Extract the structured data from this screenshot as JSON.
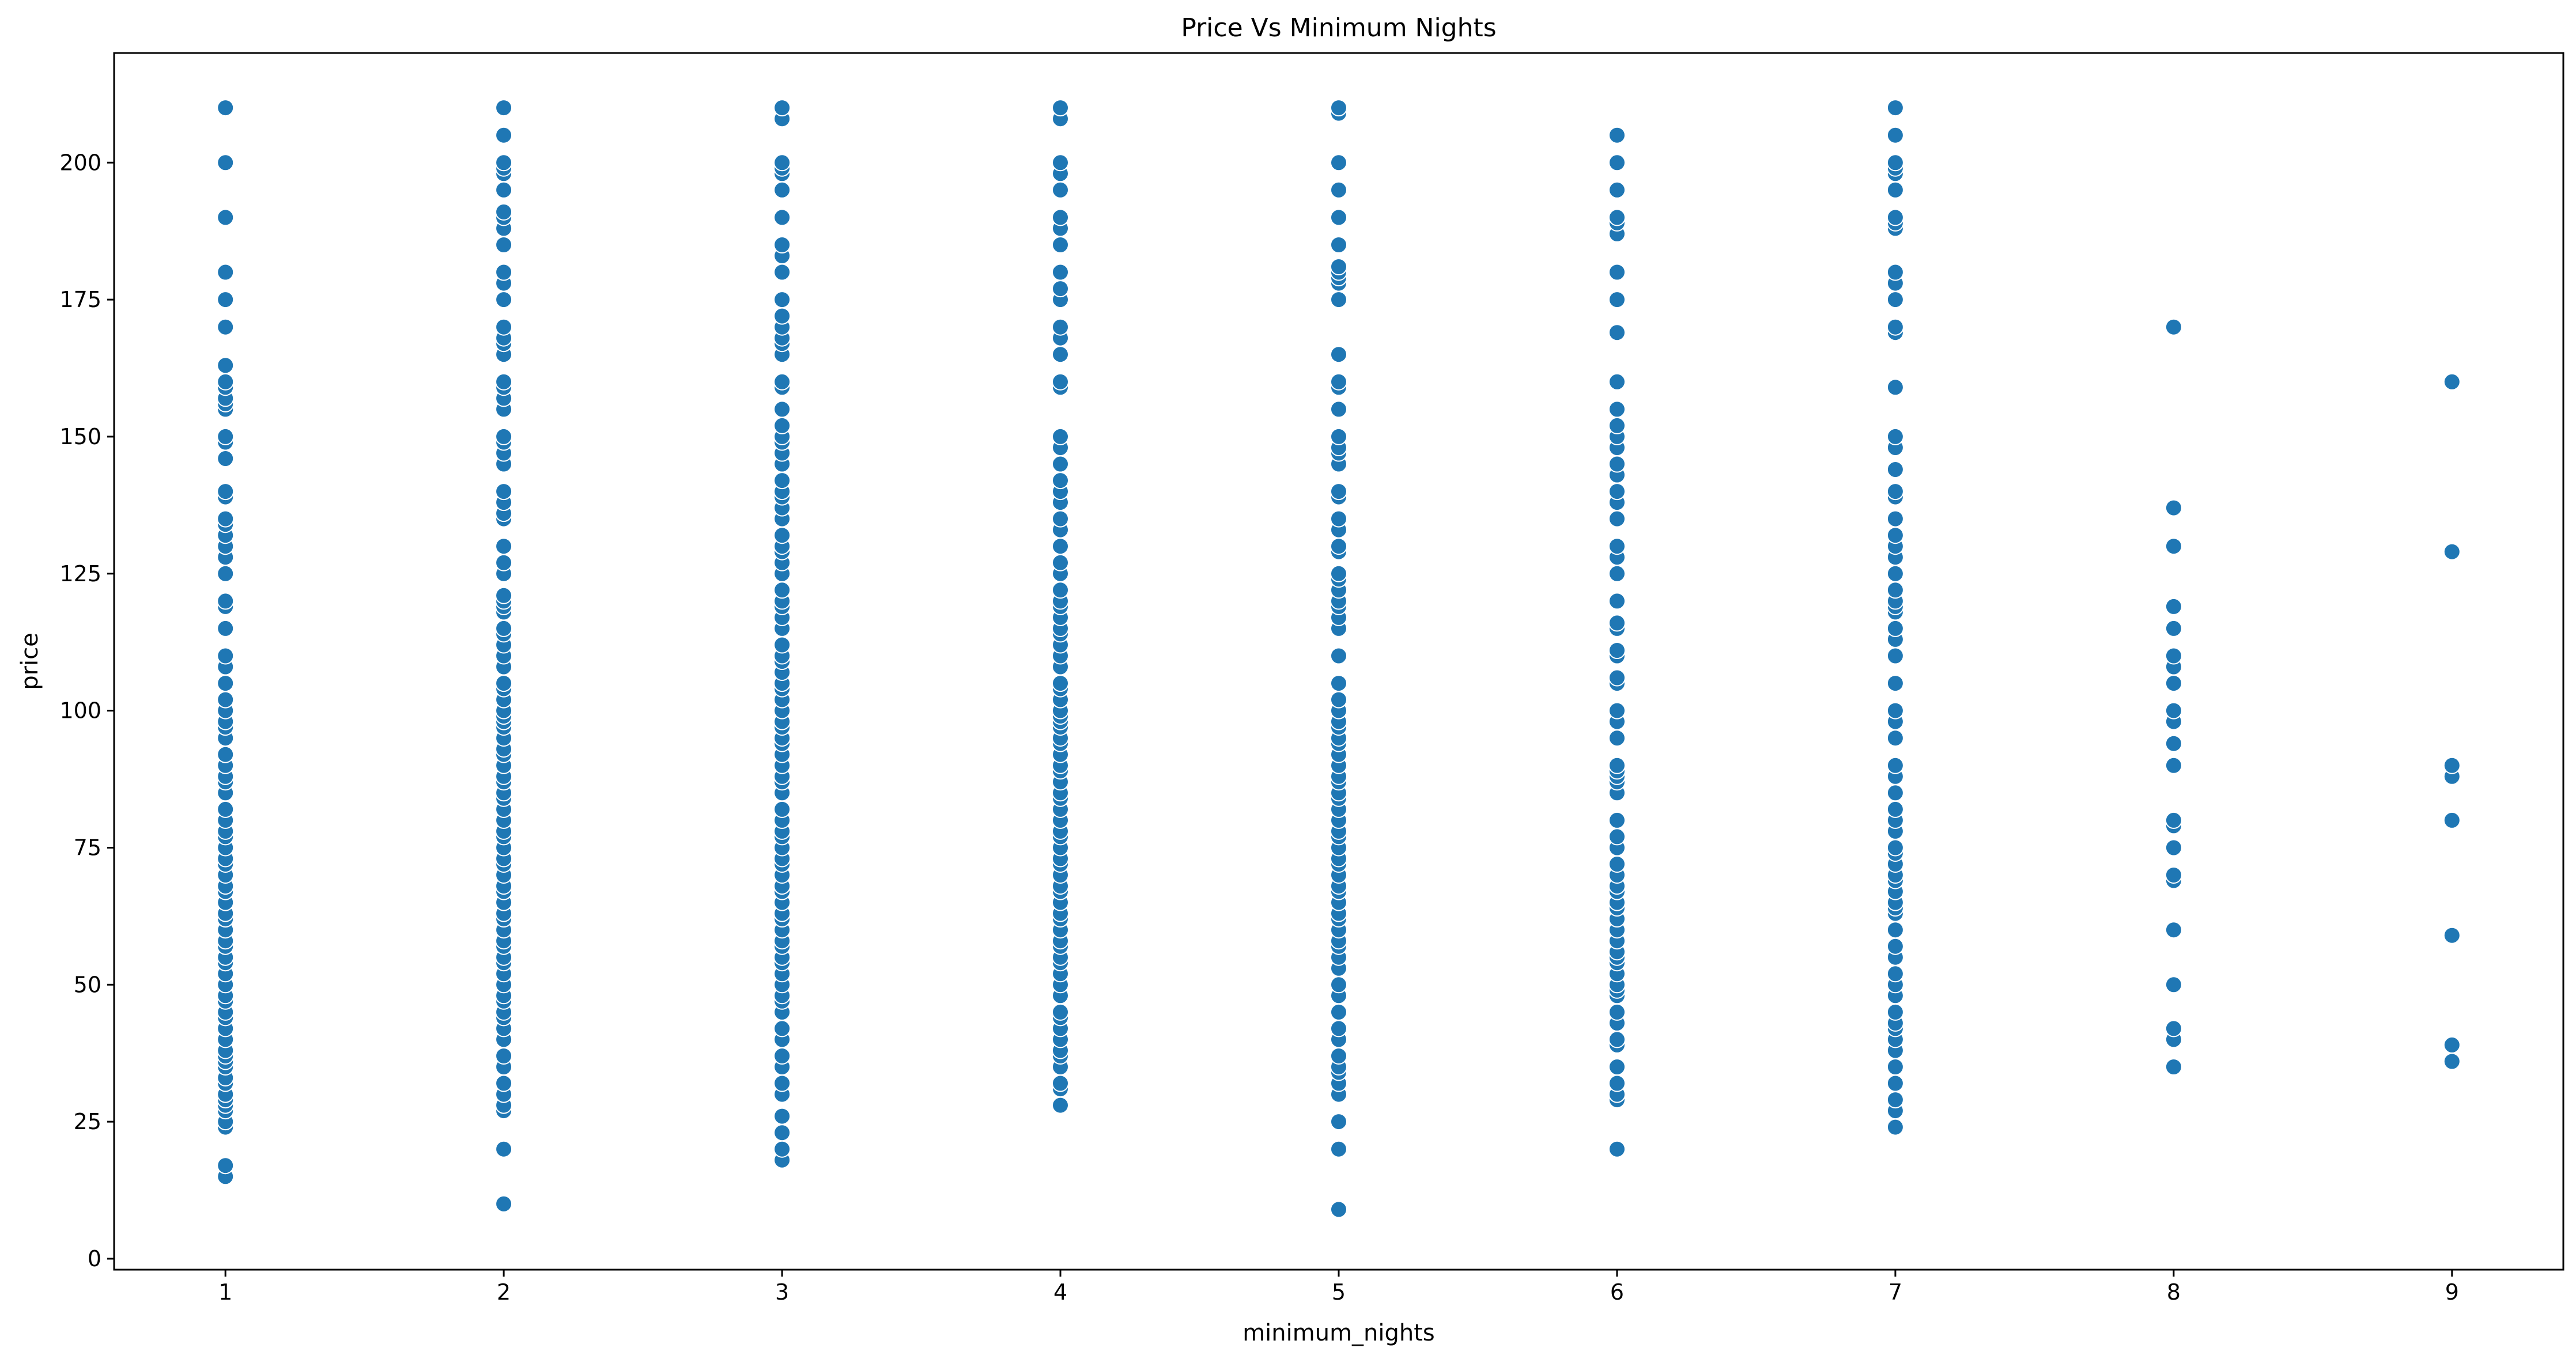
{
  "chart_data": {
    "type": "scatter",
    "title": "Price Vs Minimum Nights",
    "xlabel": "minimum_nights",
    "ylabel": "price",
    "xlim": [
      0.6,
      9.4
    ],
    "ylim": [
      -2,
      220
    ],
    "xticks": [
      1,
      2,
      3,
      4,
      5,
      6,
      7,
      8,
      9
    ],
    "yticks": [
      0,
      25,
      50,
      75,
      100,
      125,
      150,
      175,
      200
    ],
    "grid": false,
    "legend": "none",
    "color": "#1f77b4",
    "series": [
      {
        "points": [
          {
            "x": 1,
            "y": [
              15,
              17,
              24,
              25,
              27,
              28,
              29,
              30,
              32,
              33,
              35,
              36,
              37,
              38,
              40,
              42,
              44,
              45,
              47,
              48,
              50,
              52,
              54,
              55,
              57,
              58,
              60,
              62,
              63,
              65,
              67,
              68,
              70,
              72,
              73,
              75,
              77,
              78,
              80,
              82,
              85,
              87,
              88,
              90,
              92,
              95,
              97,
              98,
              100,
              102,
              105,
              108,
              110,
              115,
              119,
              120,
              125,
              128,
              130,
              132,
              134,
              135,
              139,
              140,
              146,
              149,
              150,
              155,
              156,
              157,
              159,
              160,
              163,
              170,
              175,
              180,
              190,
              200,
              210
            ]
          },
          {
            "x": 2,
            "y": [
              10,
              20,
              27,
              28,
              30,
              32,
              35,
              37,
              40,
              42,
              44,
              45,
              47,
              48,
              50,
              52,
              54,
              55,
              57,
              58,
              60,
              62,
              63,
              65,
              67,
              68,
              70,
              72,
              73,
              75,
              77,
              78,
              80,
              82,
              84,
              85,
              87,
              88,
              90,
              92,
              93,
              95,
              97,
              98,
              99,
              100,
              102,
              104,
              105,
              108,
              110,
              112,
              114,
              115,
              118,
              119,
              120,
              121,
              125,
              127,
              130,
              135,
              136,
              138,
              140,
              145,
              147,
              149,
              150,
              155,
              157,
              159,
              160,
              165,
              167,
              168,
              170,
              175,
              178,
              180,
              185,
              188,
              190,
              191,
              195,
              198,
              199,
              200,
              205,
              210
            ]
          },
          {
            "x": 3,
            "y": [
              18,
              20,
              23,
              26,
              30,
              32,
              35,
              37,
              40,
              42,
              45,
              47,
              48,
              50,
              52,
              54,
              55,
              57,
              58,
              60,
              62,
              63,
              65,
              67,
              68,
              70,
              72,
              73,
              75,
              77,
              78,
              80,
              82,
              85,
              87,
              88,
              90,
              92,
              94,
              95,
              97,
              98,
              100,
              102,
              104,
              105,
              107,
              109,
              110,
              112,
              115,
              117,
              119,
              120,
              122,
              125,
              127,
              129,
              130,
              132,
              135,
              137,
              139,
              140,
              142,
              145,
              147,
              149,
              150,
              152,
              155,
              159,
              160,
              165,
              167,
              168,
              170,
              172,
              175,
              180,
              183,
              185,
              190,
              195,
              198,
              199,
              200,
              208,
              210
            ]
          },
          {
            "x": 4,
            "y": [
              28,
              31,
              32,
              35,
              37,
              38,
              40,
              42,
              44,
              45,
              48,
              50,
              52,
              54,
              55,
              57,
              58,
              60,
              62,
              63,
              65,
              67,
              68,
              70,
              72,
              73,
              75,
              77,
              78,
              80,
              82,
              84,
              85,
              87,
              89,
              90,
              92,
              94,
              95,
              97,
              98,
              99,
              100,
              102,
              104,
              105,
              108,
              110,
              112,
              114,
              115,
              117,
              119,
              120,
              122,
              125,
              127,
              130,
              133,
              135,
              138,
              140,
              142,
              145,
              148,
              150,
              159,
              160,
              165,
              168,
              170,
              175,
              177,
              180,
              185,
              188,
              190,
              195,
              198,
              200,
              208,
              210
            ]
          },
          {
            "x": 5,
            "y": [
              9,
              20,
              25,
              30,
              32,
              34,
              35,
              37,
              40,
              42,
              45,
              48,
              50,
              53,
              55,
              57,
              58,
              60,
              62,
              63,
              65,
              67,
              68,
              70,
              72,
              73,
              75,
              77,
              78,
              80,
              82,
              84,
              85,
              87,
              88,
              90,
              92,
              94,
              95,
              97,
              98,
              100,
              102,
              105,
              110,
              115,
              117,
              119,
              120,
              122,
              124,
              125,
              129,
              130,
              133,
              135,
              139,
              140,
              145,
              147,
              148,
              150,
              155,
              159,
              160,
              165,
              175,
              178,
              179,
              180,
              181,
              185,
              190,
              195,
              200,
              209,
              210
            ]
          },
          {
            "x": 6,
            "y": [
              20,
              29,
              30,
              32,
              35,
              39,
              40,
              43,
              45,
              48,
              49,
              50,
              52,
              54,
              55,
              56,
              58,
              60,
              62,
              64,
              65,
              67,
              68,
              70,
              72,
              75,
              77,
              80,
              85,
              87,
              88,
              89,
              90,
              95,
              98,
              100,
              105,
              106,
              110,
              111,
              115,
              116,
              120,
              125,
              128,
              130,
              135,
              138,
              140,
              143,
              145,
              148,
              150,
              152,
              155,
              160,
              169,
              175,
              180,
              187,
              189,
              190,
              195,
              200,
              205
            ]
          },
          {
            "x": 7,
            "y": [
              24,
              27,
              29,
              32,
              35,
              38,
              40,
              42,
              43,
              45,
              48,
              50,
              52,
              55,
              57,
              60,
              63,
              64,
              65,
              67,
              69,
              70,
              72,
              74,
              75,
              78,
              80,
              82,
              85,
              88,
              90,
              95,
              98,
              100,
              105,
              110,
              113,
              115,
              118,
              119,
              120,
              122,
              125,
              128,
              130,
              132,
              135,
              139,
              140,
              144,
              148,
              150,
              159,
              169,
              170,
              175,
              178,
              180,
              188,
              189,
              190,
              195,
              198,
              199,
              200,
              205,
              210
            ]
          },
          {
            "x": 8,
            "y": [
              35,
              40,
              42,
              50,
              60,
              69,
              70,
              75,
              79,
              80,
              90,
              94,
              98,
              100,
              105,
              108,
              110,
              115,
              119,
              130,
              137,
              170
            ]
          },
          {
            "x": 9,
            "y": [
              36,
              39,
              59,
              80,
              88,
              90,
              129,
              160
            ]
          }
        ]
      }
    ]
  }
}
